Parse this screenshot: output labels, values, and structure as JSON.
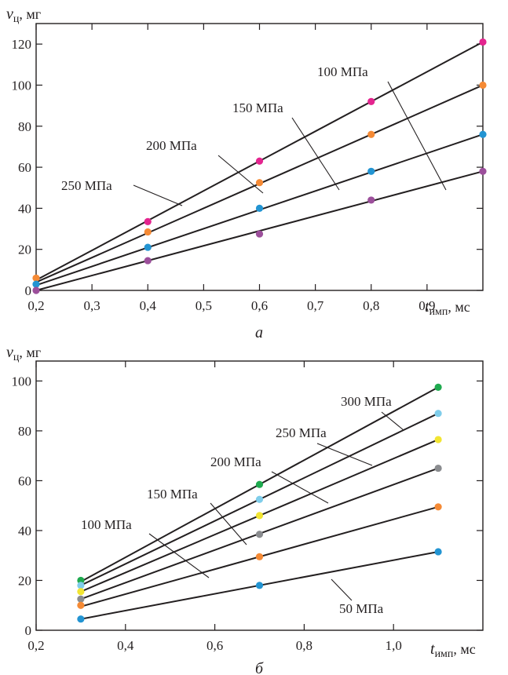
{
  "chart_data": [
    {
      "type": "line",
      "panel_label": "а",
      "ylabel": {
        "symbol": "v",
        "subscript": "ц",
        "unit": ", мг"
      },
      "xlabel": {
        "symbol": "t",
        "subscript": "имп",
        "unit": ", мс"
      },
      "xlim": [
        0.2,
        1.0
      ],
      "ylim": [
        0,
        130
      ],
      "xticks": [
        0.2,
        0.3,
        0.4,
        0.5,
        0.6,
        0.7,
        0.8,
        0.9
      ],
      "xtick_labels": [
        "0,2",
        "0,3",
        "0,4",
        "0,5",
        "0,6",
        "0,7",
        "0,8",
        "0,9"
      ],
      "yticks": [
        0,
        20,
        40,
        60,
        80,
        100,
        120
      ],
      "ytick_labels": [
        "0",
        "20",
        "40",
        "60",
        "80",
        "100",
        "120"
      ],
      "x": [
        0.2,
        0.4,
        0.6,
        0.8,
        1.0
      ],
      "series": [
        {
          "name": "100 МПа",
          "color": "#e4258f",
          "values": [
            null,
            33.5,
            63,
            92,
            121
          ],
          "line": [
            [
              0.2,
              5
            ],
            [
              1.0,
              121
            ]
          ]
        },
        {
          "name": "150 МПа",
          "color": "#f58a35",
          "values": [
            6,
            28.5,
            52.5,
            76,
            100
          ],
          "line": [
            [
              0.2,
              4
            ],
            [
              1.0,
              100
            ]
          ]
        },
        {
          "name": "200 МПа",
          "color": "#2294d2",
          "values": [
            3,
            21,
            40,
            58,
            76
          ],
          "line": [
            [
              0.2,
              2.5
            ],
            [
              1.0,
              76
            ]
          ]
        },
        {
          "name": "250 МПа",
          "color": "#9c4f9b",
          "values": [
            0,
            14.5,
            27.5,
            44,
            58
          ],
          "line": [
            [
              0.2,
              0
            ],
            [
              1.0,
              58
            ]
          ]
        }
      ]
    },
    {
      "type": "line",
      "panel_label": "б",
      "ylabel": {
        "symbol": "v",
        "subscript": "ц",
        "unit": ", мг"
      },
      "xlabel": {
        "symbol": "t",
        "subscript": "имп",
        "unit": ", мс"
      },
      "xlim": [
        0.2,
        1.2
      ],
      "ylim": [
        0,
        108
      ],
      "xticks": [
        0.2,
        0.4,
        0.6,
        0.8,
        1.0
      ],
      "xtick_labels": [
        "0,2",
        "0,4",
        "0,6",
        "0,8",
        "1,0"
      ],
      "yticks": [
        0,
        20,
        40,
        60,
        80,
        100
      ],
      "ytick_labels": [
        "0",
        "20",
        "40",
        "60",
        "80",
        "100"
      ],
      "x": [
        0.3,
        0.7,
        1.1
      ],
      "series": [
        {
          "name": "300 МПа",
          "color": "#1faa4f",
          "values": [
            20,
            58.5,
            97.5
          ],
          "line": [
            [
              0.3,
              19.5
            ],
            [
              1.1,
              97.5
            ]
          ]
        },
        {
          "name": "250 МПа",
          "color": "#7fcdea",
          "values": [
            18,
            52.5,
            87
          ],
          "line": [
            [
              0.3,
              18
            ],
            [
              1.1,
              87
            ]
          ]
        },
        {
          "name": "200 МПа",
          "color": "#f2e532",
          "values": [
            15.5,
            46,
            76.5
          ],
          "line": [
            [
              0.3,
              15.5
            ],
            [
              1.1,
              76.5
            ]
          ]
        },
        {
          "name": "150 МПа",
          "color": "#8a8c8f",
          "values": [
            12.5,
            38.5,
            65
          ],
          "line": [
            [
              0.3,
              12.5
            ],
            [
              1.1,
              65
            ]
          ]
        },
        {
          "name": "100 МПа",
          "color": "#f58a35",
          "values": [
            10,
            29.5,
            49.5
          ],
          "line": [
            [
              0.3,
              9.5
            ],
            [
              1.1,
              49.5
            ]
          ]
        },
        {
          "name": "50 МПа",
          "color": "#2294d2",
          "values": [
            4.5,
            18,
            31.5
          ],
          "line": [
            [
              0.3,
              4.5
            ],
            [
              1.1,
              31.5
            ]
          ]
        }
      ]
    }
  ]
}
